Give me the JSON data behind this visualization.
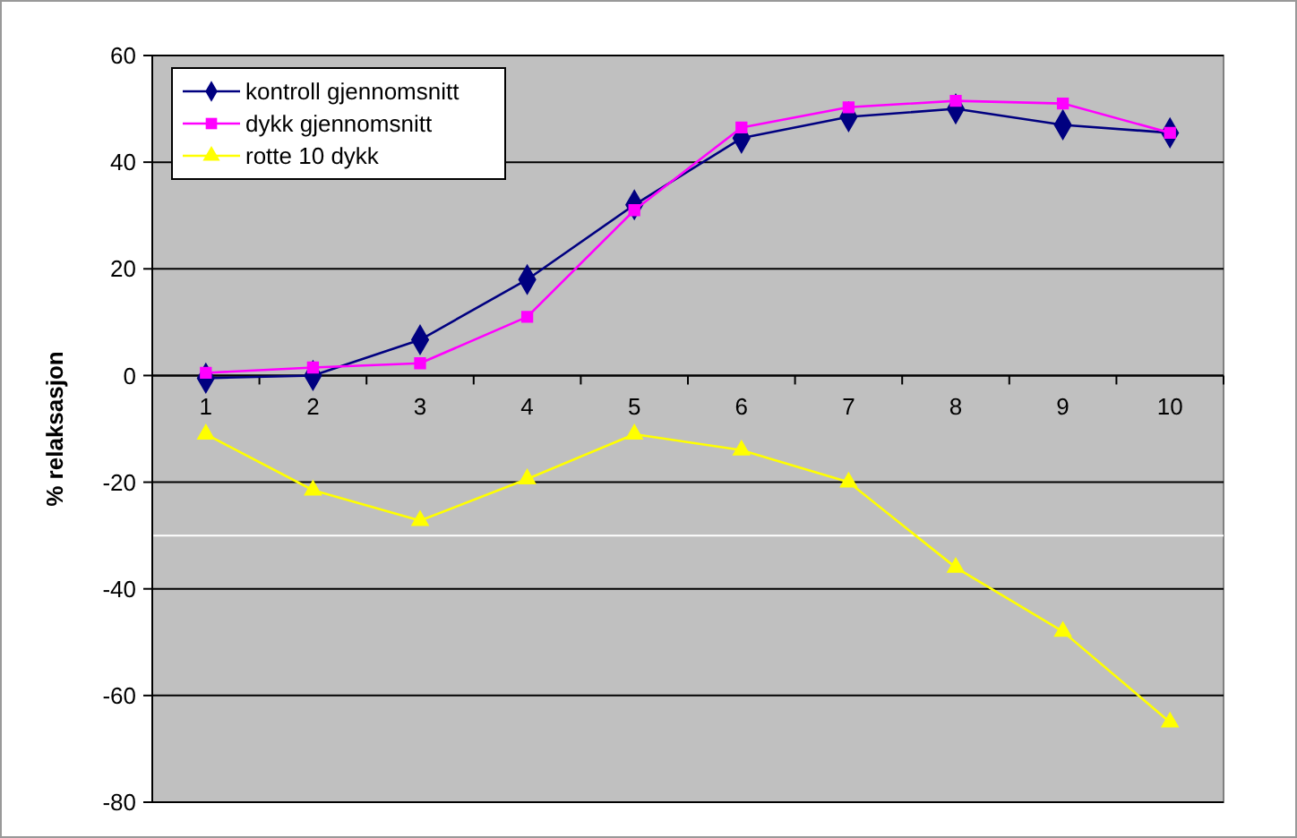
{
  "chart_data": {
    "type": "line",
    "ylabel": "% relaksasjon",
    "categories": [
      "1",
      "2",
      "3",
      "4",
      "5",
      "6",
      "7",
      "8",
      "9",
      "10"
    ],
    "series": [
      {
        "name": "kontroll gjennomsnitt",
        "color": "#000080",
        "marker": "diamond",
        "values": [
          -0.5,
          0,
          6.7,
          18,
          32,
          44.5,
          48.5,
          50,
          47,
          45.5
        ]
      },
      {
        "name": "dykk gjennomsnitt",
        "color": "#ff00ff",
        "marker": "square",
        "values": [
          0.5,
          1.5,
          2.3,
          11,
          31,
          46.5,
          50.3,
          51.5,
          51,
          45.5
        ]
      },
      {
        "name": "rotte 10 dykk",
        "color": "#ffff00",
        "marker": "triangle",
        "values": [
          -11,
          -21.5,
          -27.2,
          -19.4,
          -11,
          -14,
          -20,
          -36,
          -48,
          -65
        ]
      }
    ],
    "ylim": [
      -80,
      60
    ],
    "yticks": [
      -80,
      -60,
      -40,
      -20,
      0,
      20,
      40,
      60
    ],
    "grid": "y",
    "legend": "top left",
    "ref_lines": [
      {
        "axis": "y",
        "value": -30,
        "color": "#ffffff"
      }
    ]
  }
}
